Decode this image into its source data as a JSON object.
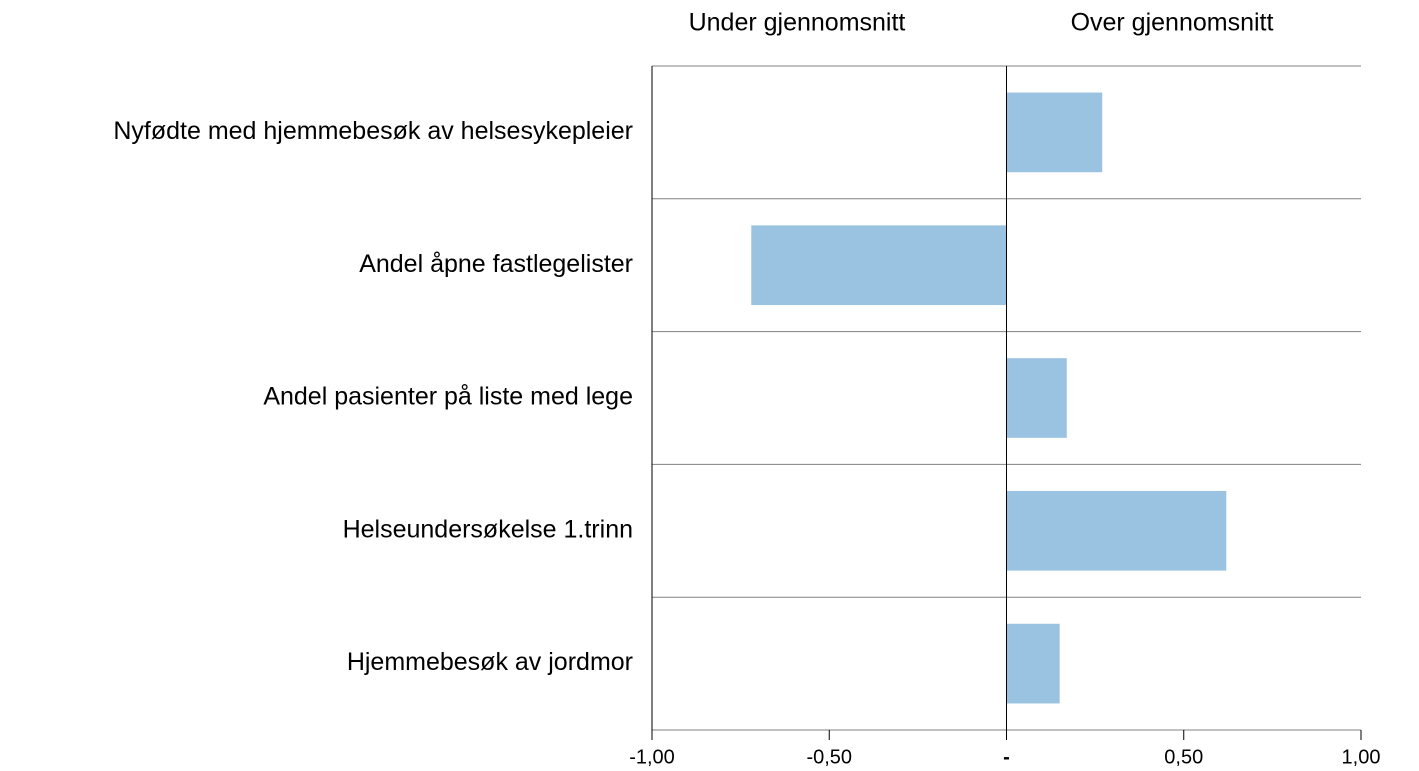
{
  "chart_data": {
    "type": "barh",
    "annotations": [
      "Under gjennomsnitt",
      "Over gjennomsnitt"
    ],
    "categories": [
      "Nyfødte med hjemmebesøk av helsesykepleier",
      "Andel åpne fastlegelister",
      "Andel pasienter på liste med lege",
      "Helseundersøkelse 1.trinn",
      "Hjemmebesøk av jordmor"
    ],
    "values": [
      0.27,
      -0.72,
      0.17,
      0.62,
      0.15
    ],
    "color": "#9ac3e2",
    "xlim": [
      -1,
      1
    ],
    "xticks": [
      {
        "value": -1,
        "label": "-1,00"
      },
      {
        "value": -0.5,
        "label": "-0,50"
      },
      {
        "value": 0,
        "label": "-"
      },
      {
        "value": 0.5,
        "label": "0,50"
      },
      {
        "value": 1,
        "label": "1,00"
      }
    ]
  }
}
